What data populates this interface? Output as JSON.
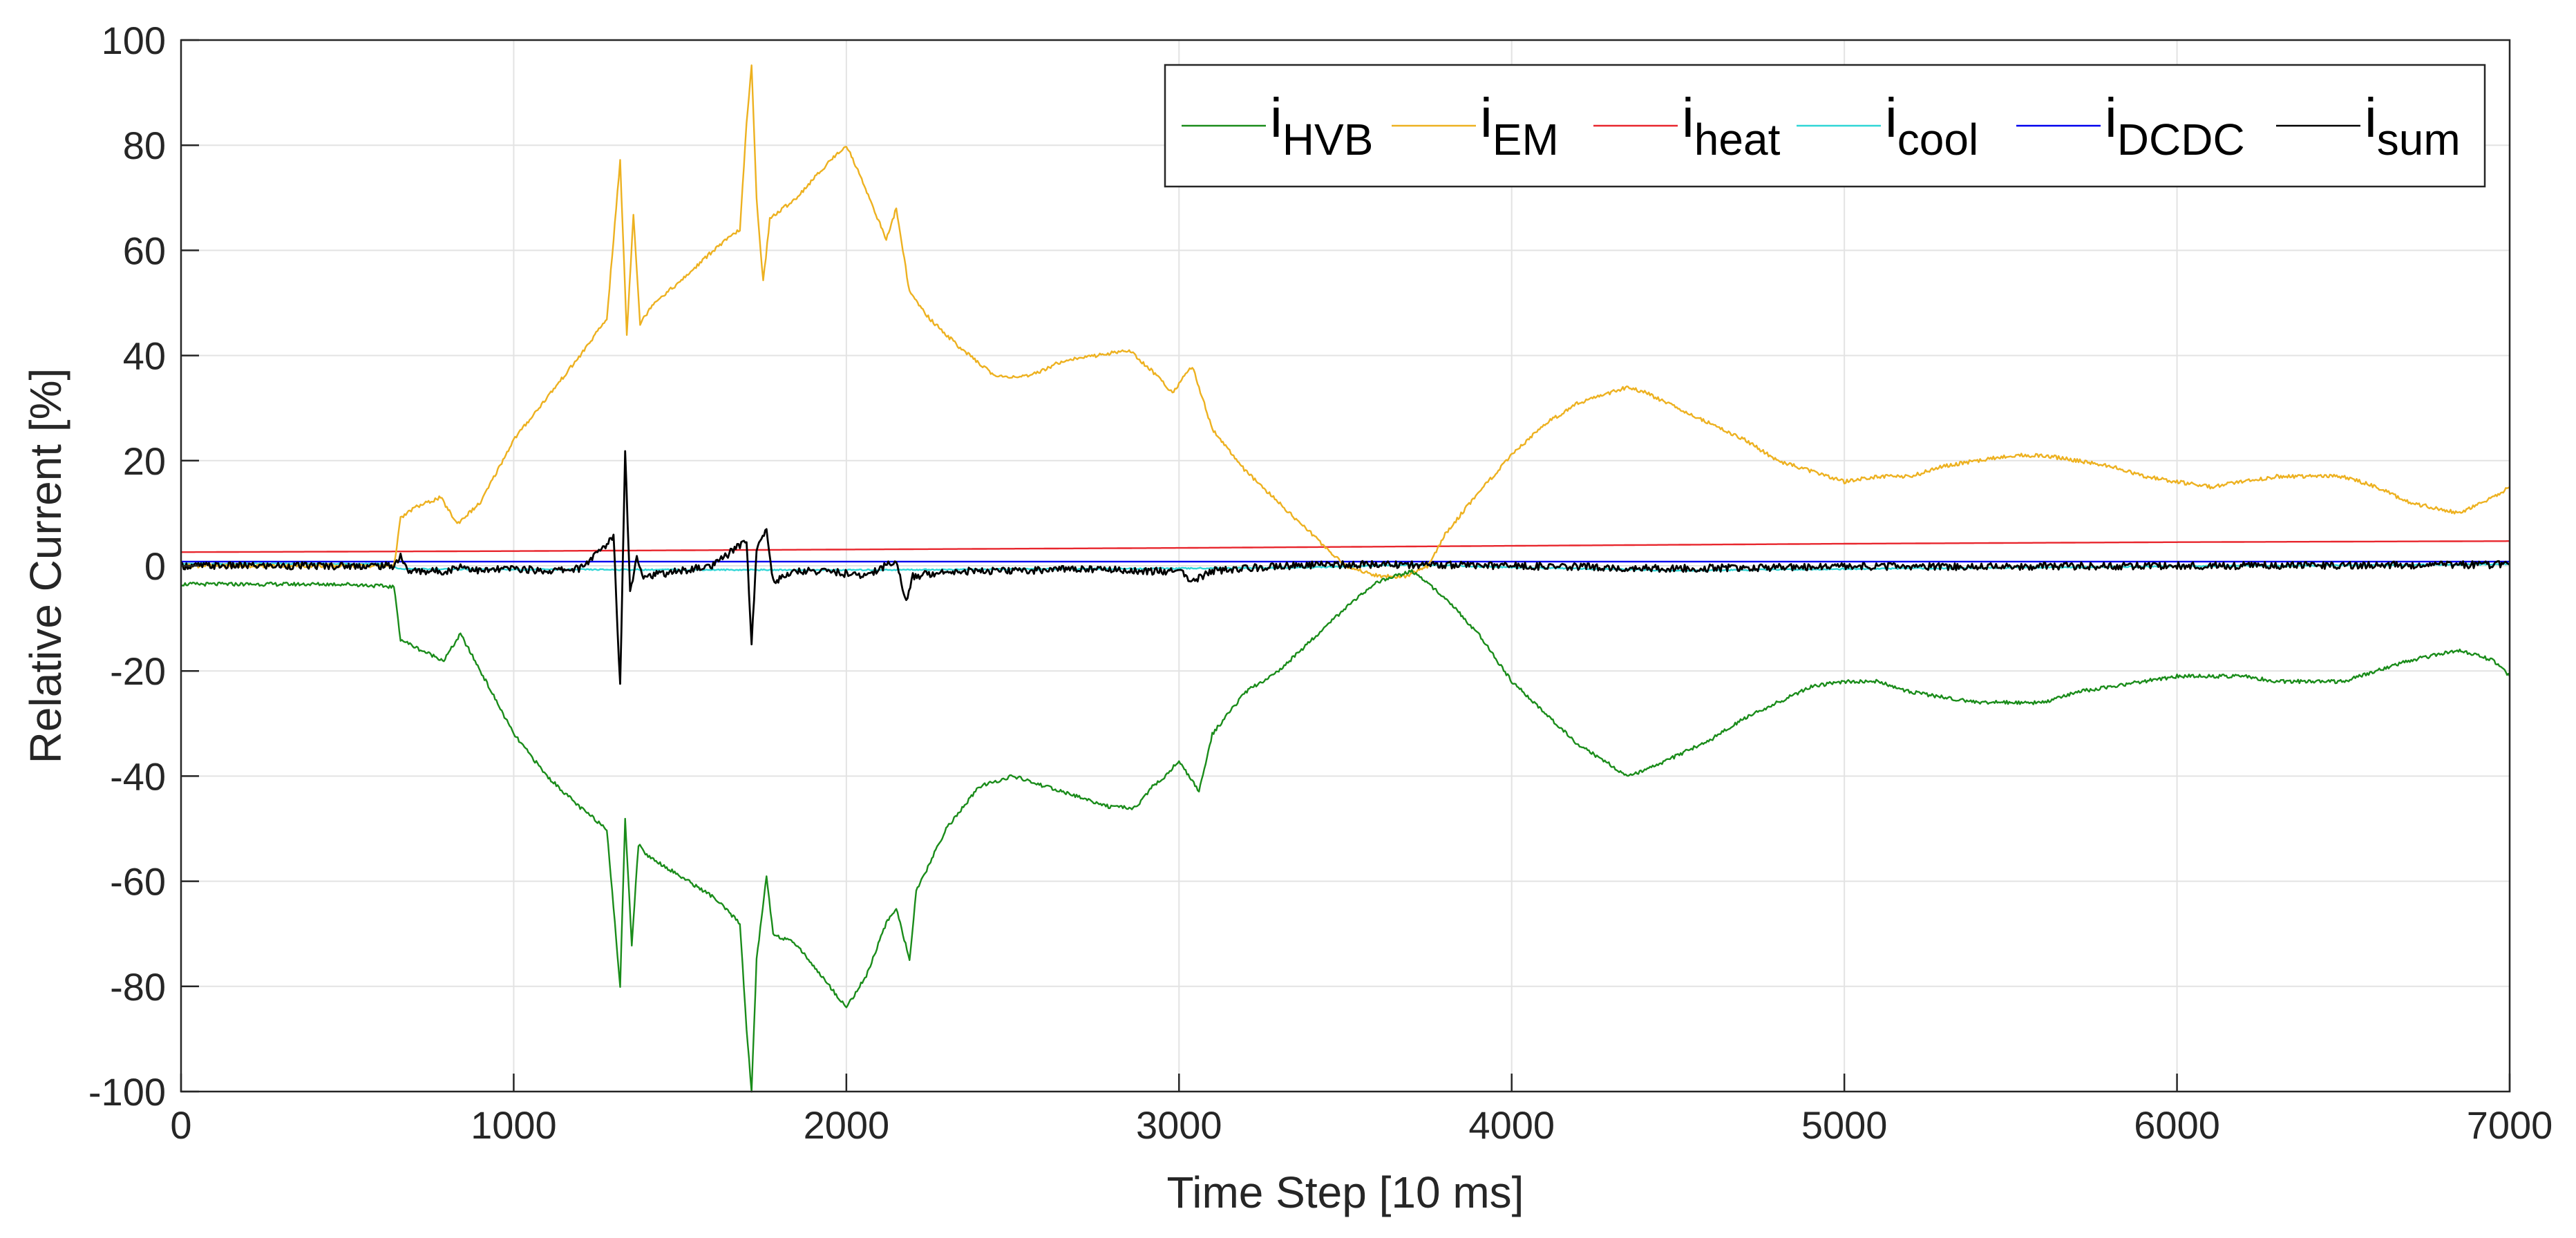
{
  "chart_data": {
    "type": "line",
    "title": "",
    "xlabel": "Time Step [10 ms]",
    "ylabel": "Relative Current [%]",
    "xlim": [
      0,
      7000
    ],
    "ylim": [
      -100,
      100
    ],
    "grid": true,
    "legend_position": "top-right",
    "legend_orientation": "horizontal",
    "x_ticks": [
      0,
      1000,
      2000,
      3000,
      4000,
      5000,
      6000,
      7000
    ],
    "y_ticks": [
      -100,
      -80,
      -60,
      -40,
      -20,
      0,
      20,
      40,
      60,
      80,
      100
    ],
    "series": [
      {
        "name": "i_HVB",
        "label_main": "i",
        "label_sub": "HVB",
        "color": "#1a8c1a",
        "points": [
          [
            0,
            -3.5
          ],
          [
            500,
            -3.5
          ],
          [
            640,
            -4
          ],
          [
            660,
            -14
          ],
          [
            720,
            -16
          ],
          [
            790,
            -18
          ],
          [
            840,
            -13
          ],
          [
            900,
            -20
          ],
          [
            1000,
            -32
          ],
          [
            1100,
            -40
          ],
          [
            1200,
            -46
          ],
          [
            1280,
            -50
          ],
          [
            1320,
            -80
          ],
          [
            1335,
            -48
          ],
          [
            1355,
            -72
          ],
          [
            1375,
            -53
          ],
          [
            1400,
            -55
          ],
          [
            1500,
            -59
          ],
          [
            1600,
            -63
          ],
          [
            1680,
            -68
          ],
          [
            1700,
            -88
          ],
          [
            1715,
            -100
          ],
          [
            1730,
            -75
          ],
          [
            1760,
            -59
          ],
          [
            1780,
            -70
          ],
          [
            1850,
            -72
          ],
          [
            1950,
            -80
          ],
          [
            2000,
            -84
          ],
          [
            2060,
            -78
          ],
          [
            2120,
            -68
          ],
          [
            2150,
            -65
          ],
          [
            2190,
            -75
          ],
          [
            2210,
            -62
          ],
          [
            2300,
            -50
          ],
          [
            2400,
            -42
          ],
          [
            2500,
            -40
          ],
          [
            2600,
            -42
          ],
          [
            2700,
            -44
          ],
          [
            2800,
            -46
          ],
          [
            2870,
            -46
          ],
          [
            2920,
            -42
          ],
          [
            2960,
            -40
          ],
          [
            3000,
            -37
          ],
          [
            3060,
            -43
          ],
          [
            3100,
            -32
          ],
          [
            3200,
            -24
          ],
          [
            3300,
            -20
          ],
          [
            3400,
            -14
          ],
          [
            3500,
            -8
          ],
          [
            3600,
            -3
          ],
          [
            3700,
            -1
          ],
          [
            3800,
            -6
          ],
          [
            3900,
            -13
          ],
          [
            4000,
            -22
          ],
          [
            4100,
            -28
          ],
          [
            4200,
            -34
          ],
          [
            4300,
            -38
          ],
          [
            4350,
            -40
          ],
          [
            4400,
            -39
          ],
          [
            4500,
            -36
          ],
          [
            4600,
            -33
          ],
          [
            4700,
            -29
          ],
          [
            4800,
            -26
          ],
          [
            4900,
            -23
          ],
          [
            5000,
            -22
          ],
          [
            5100,
            -22
          ],
          [
            5200,
            -24
          ],
          [
            5300,
            -25
          ],
          [
            5400,
            -26
          ],
          [
            5500,
            -26
          ],
          [
            5600,
            -26
          ],
          [
            5700,
            -24
          ],
          [
            5800,
            -23
          ],
          [
            5900,
            -22
          ],
          [
            6000,
            -21
          ],
          [
            6100,
            -21
          ],
          [
            6200,
            -21
          ],
          [
            6300,
            -22
          ],
          [
            6400,
            -22
          ],
          [
            6500,
            -22
          ],
          [
            6600,
            -20
          ],
          [
            6700,
            -18
          ],
          [
            6850,
            -16
          ],
          [
            6950,
            -18
          ],
          [
            7000,
            -21
          ]
        ]
      },
      {
        "name": "i_EM",
        "label_main": "i",
        "label_sub": "EM",
        "color": "#edb120",
        "points": [
          [
            0,
            0
          ],
          [
            640,
            0
          ],
          [
            660,
            9
          ],
          [
            700,
            11
          ],
          [
            780,
            13
          ],
          [
            830,
            8
          ],
          [
            900,
            12
          ],
          [
            1000,
            24
          ],
          [
            1100,
            32
          ],
          [
            1200,
            40
          ],
          [
            1280,
            47
          ],
          [
            1320,
            77
          ],
          [
            1340,
            44
          ],
          [
            1360,
            67
          ],
          [
            1380,
            46
          ],
          [
            1420,
            50
          ],
          [
            1500,
            54
          ],
          [
            1600,
            60
          ],
          [
            1680,
            64
          ],
          [
            1700,
            84
          ],
          [
            1715,
            95
          ],
          [
            1730,
            70
          ],
          [
            1750,
            54
          ],
          [
            1770,
            66
          ],
          [
            1850,
            70
          ],
          [
            1950,
            77
          ],
          [
            2000,
            80
          ],
          [
            2050,
            73
          ],
          [
            2120,
            62
          ],
          [
            2150,
            68
          ],
          [
            2190,
            52
          ],
          [
            2250,
            47
          ],
          [
            2350,
            41
          ],
          [
            2450,
            36
          ],
          [
            2550,
            36
          ],
          [
            2650,
            39
          ],
          [
            2750,
            40
          ],
          [
            2850,
            41
          ],
          [
            2920,
            37
          ],
          [
            2980,
            33
          ],
          [
            3040,
            38
          ],
          [
            3100,
            26
          ],
          [
            3200,
            18
          ],
          [
            3300,
            12
          ],
          [
            3400,
            6
          ],
          [
            3500,
            0
          ],
          [
            3600,
            -2
          ],
          [
            3680,
            -2
          ],
          [
            3750,
            0
          ],
          [
            3800,
            6
          ],
          [
            3900,
            14
          ],
          [
            4000,
            21
          ],
          [
            4100,
            27
          ],
          [
            4200,
            31
          ],
          [
            4350,
            34
          ],
          [
            4400,
            33
          ],
          [
            4500,
            30
          ],
          [
            4600,
            27
          ],
          [
            4700,
            24
          ],
          [
            4800,
            20
          ],
          [
            4900,
            18
          ],
          [
            5000,
            16
          ],
          [
            5100,
            17
          ],
          [
            5200,
            17
          ],
          [
            5300,
            19
          ],
          [
            5400,
            20
          ],
          [
            5500,
            21
          ],
          [
            5600,
            21
          ],
          [
            5700,
            20
          ],
          [
            5800,
            19
          ],
          [
            5900,
            17
          ],
          [
            6000,
            16
          ],
          [
            6100,
            15
          ],
          [
            6200,
            16
          ],
          [
            6300,
            17
          ],
          [
            6400,
            17
          ],
          [
            6500,
            17
          ],
          [
            6600,
            15
          ],
          [
            6700,
            12
          ],
          [
            6850,
            10
          ],
          [
            6950,
            13
          ],
          [
            7000,
            15
          ]
        ]
      },
      {
        "name": "i_heat",
        "label_main": "i",
        "label_sub": "heat",
        "color": "#e8262d",
        "points": [
          [
            0,
            2.6
          ],
          [
            1000,
            2.8
          ],
          [
            2000,
            3.1
          ],
          [
            3000,
            3.4
          ],
          [
            4000,
            3.8
          ],
          [
            5000,
            4.2
          ],
          [
            6000,
            4.5
          ],
          [
            7000,
            4.7
          ]
        ]
      },
      {
        "name": "i_cool",
        "label_main": "i",
        "label_sub": "cool",
        "color": "#2fd6d6",
        "points": [
          [
            0,
            0.4
          ],
          [
            600,
            0.4
          ],
          [
            660,
            -0.6
          ],
          [
            1000,
            -0.7
          ],
          [
            2000,
            -0.8
          ],
          [
            3000,
            -0.5
          ],
          [
            3400,
            -0.3
          ],
          [
            3700,
            0.2
          ],
          [
            4000,
            -0.3
          ],
          [
            4500,
            -0.9
          ],
          [
            5000,
            -0.6
          ],
          [
            6000,
            -0.1
          ],
          [
            7000,
            0.3
          ]
        ]
      },
      {
        "name": "i_DCDC",
        "label_main": "i",
        "label_sub": "DCDC",
        "color": "#0000ee",
        "points": [
          [
            0,
            0.8
          ],
          [
            1000,
            0.8
          ],
          [
            2000,
            0.8
          ],
          [
            3000,
            0.8
          ],
          [
            4000,
            0.8
          ],
          [
            5000,
            0.8
          ],
          [
            6000,
            0.8
          ],
          [
            7000,
            0.8
          ]
        ]
      },
      {
        "name": "i_sum",
        "label_main": "i",
        "label_sub": "sum",
        "color": "#000000",
        "points": [
          [
            0,
            0
          ],
          [
            640,
            0
          ],
          [
            660,
            2
          ],
          [
            680,
            -1
          ],
          [
            800,
            -1
          ],
          [
            840,
            0
          ],
          [
            900,
            -1
          ],
          [
            1000,
            -0.5
          ],
          [
            1100,
            -1
          ],
          [
            1200,
            -0.5
          ],
          [
            1280,
            4
          ],
          [
            1300,
            6
          ],
          [
            1320,
            -23
          ],
          [
            1335,
            22
          ],
          [
            1350,
            -5
          ],
          [
            1370,
            2
          ],
          [
            1390,
            -2
          ],
          [
            1500,
            -1
          ],
          [
            1600,
            0
          ],
          [
            1680,
            4
          ],
          [
            1700,
            5
          ],
          [
            1715,
            -15
          ],
          [
            1730,
            3
          ],
          [
            1760,
            7
          ],
          [
            1780,
            -3
          ],
          [
            1850,
            -1
          ],
          [
            1950,
            -1
          ],
          [
            2050,
            -2
          ],
          [
            2150,
            1
          ],
          [
            2180,
            -7
          ],
          [
            2200,
            -2
          ],
          [
            2300,
            -1
          ],
          [
            2500,
            -1
          ],
          [
            2700,
            -0.5
          ],
          [
            2900,
            -1
          ],
          [
            3000,
            -1
          ],
          [
            3040,
            -3
          ],
          [
            3100,
            -1
          ],
          [
            3300,
            0
          ],
          [
            3600,
            0.3
          ],
          [
            4000,
            0
          ],
          [
            4500,
            -0.5
          ],
          [
            5000,
            -0.2
          ],
          [
            6000,
            0
          ],
          [
            7000,
            0.2
          ]
        ]
      }
    ]
  }
}
